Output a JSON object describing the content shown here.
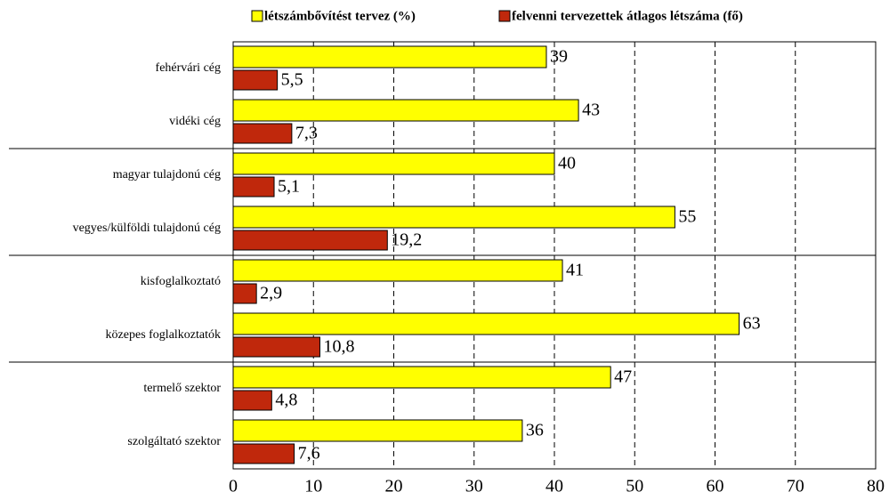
{
  "chart_data": {
    "type": "hbar",
    "categories": [
      "fehérvári cég",
      "vidéki cég",
      "magyar tulajdonú cég",
      "vegyes/külföldi tulajdonú cég",
      "kisfoglalkoztató",
      "közepes foglalkoztatók",
      "termelő szektor",
      "szolgáltató szektor"
    ],
    "series": [
      {
        "name": "létszámbővítést tervez (%)",
        "color": "#ffff00",
        "values": [
          39,
          43,
          40,
          55,
          41,
          63,
          47,
          36
        ]
      },
      {
        "name": "felvenni tervezettek átlagos létszáma (fő)",
        "color": "#c0280c",
        "values": [
          5.5,
          7.3,
          5.1,
          19.2,
          2.9,
          10.8,
          4.8,
          7.6
        ],
        "value_labels": [
          "5,5",
          "7,3",
          "5,1",
          "19,2",
          "2,9",
          "10,8",
          "4,8",
          "7,6"
        ]
      }
    ],
    "xlim": [
      0,
      80
    ],
    "xticks": [
      0,
      10,
      20,
      30,
      40,
      50,
      60,
      70,
      80
    ],
    "grid": true,
    "legend": "top"
  }
}
